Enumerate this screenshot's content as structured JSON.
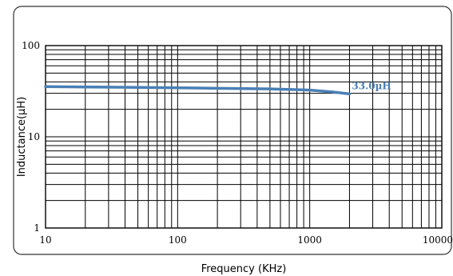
{
  "chart_data": {
    "type": "line",
    "title": "",
    "xlabel": "Frequency (KHz)",
    "ylabel": "Inductance(µH)",
    "xscale": "log",
    "yscale": "log",
    "xlim": [
      10,
      10000
    ],
    "ylim": [
      1,
      100
    ],
    "grid": true,
    "x_ticks": [
      10,
      100,
      1000,
      10000
    ],
    "x_tick_labels": [
      "10",
      "100",
      "1000",
      "10000"
    ],
    "y_ticks": [
      1,
      10,
      100
    ],
    "y_tick_labels": [
      "1",
      "10",
      "100"
    ],
    "series": [
      {
        "name": "33.0µH",
        "color": "#4a7fb5",
        "x": [
          10,
          20,
          50,
          100,
          200,
          500,
          1000,
          1500,
          2000
        ],
        "y": [
          35.5,
          35.2,
          34.8,
          34.5,
          34.0,
          33.5,
          32.5,
          31.0,
          29.5
        ]
      }
    ]
  }
}
